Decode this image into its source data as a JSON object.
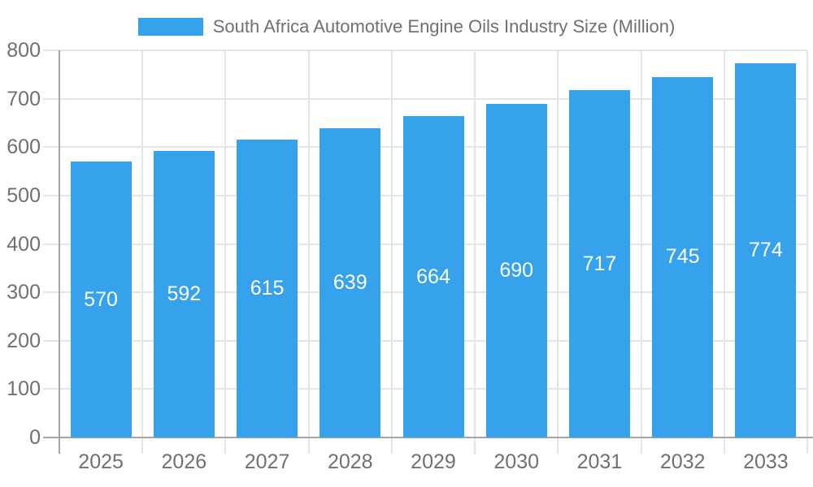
{
  "chart_data": {
    "type": "bar",
    "title": "South Africa Automotive Engine Oils Industry Size (Million)",
    "categories": [
      "2025",
      "2026",
      "2027",
      "2028",
      "2029",
      "2030",
      "2031",
      "2032",
      "2033"
    ],
    "values": [
      570,
      592,
      615,
      639,
      664,
      690,
      717,
      745,
      774
    ],
    "series": [
      {
        "name": "South Africa Automotive Engine Oils Industry Size (Million)",
        "values": [
          570,
          592,
          615,
          639,
          664,
          690,
          717,
          745,
          774
        ]
      }
    ],
    "xlabel": "",
    "ylabel": "",
    "ylim": [
      0,
      800
    ],
    "ytick_step": 100,
    "yticks": [
      0,
      100,
      200,
      300,
      400,
      500,
      600,
      700,
      800
    ],
    "grid": true,
    "legend_position": "top-center",
    "value_labels": "inside-center"
  },
  "colors": {
    "bar": "#36A2EB",
    "grid": "#E5E5E5",
    "axis_line": "#A6A6A6",
    "text": "#707070",
    "bar_label": "#FFFFFF",
    "background": "#FFFFFF"
  }
}
